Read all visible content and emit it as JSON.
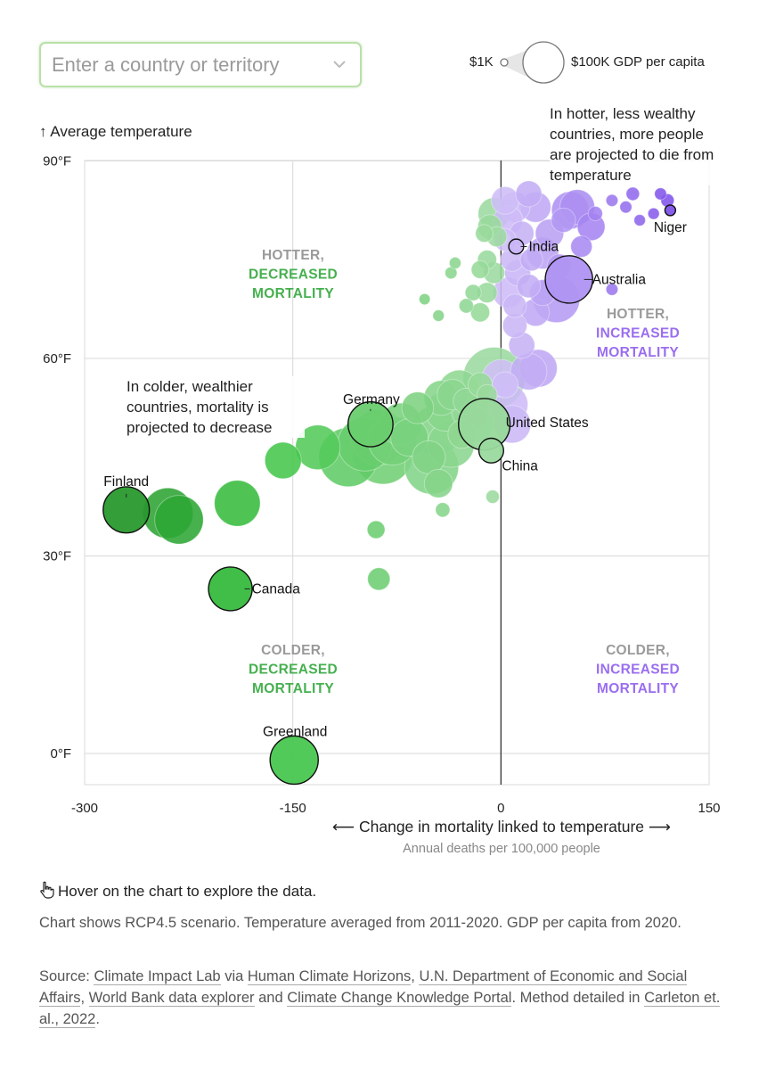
{
  "search": {
    "placeholder": "Enter a country or territory"
  },
  "size_legend": {
    "low": "$1K",
    "high": "$100K GDP per capita"
  },
  "colors": {
    "green_dark": "#2e9a3a",
    "green_light": "#a9e2a4",
    "purple": "#9a6ef0",
    "purple_light": "#d9ccf7",
    "grid": "#d9d9d9"
  },
  "chart_data": {
    "type": "scatter",
    "xlabel": "⟵ Change in mortality linked to temperature ⟶",
    "xlabel_sub": "Annual deaths per 100,000 people",
    "ylabel": "↑ Average temperature",
    "xlim": [
      -300,
      150
    ],
    "ylim": [
      -5,
      90
    ],
    "xticks": [
      "-300",
      "-150",
      "0",
      "150"
    ],
    "yticks": [
      "90°F",
      "60°F",
      "30°F",
      "0°F"
    ],
    "quadrants": {
      "top_left": [
        "HOTTER,",
        "DECREASED",
        "MORTALITY"
      ],
      "top_right": [
        "HOTTER,",
        "INCREASED",
        "MORTALITY"
      ],
      "bottom_left": [
        "COLDER,",
        "DECREASED",
        "MORTALITY"
      ],
      "bottom_right": [
        "COLDER,",
        "INCREASED",
        "MORTALITY"
      ]
    },
    "annotations": {
      "hot": "In hotter, less wealthy countries, more people are projected to die from temperature",
      "cold": "In colder, wealthier countries, mortality is projected to decrease"
    },
    "labeled_points": [
      {
        "name": "Niger",
        "x": 122,
        "y": 82.5,
        "gdp": 0.6
      },
      {
        "name": "India",
        "x": 11,
        "y": 77,
        "gdp": 2.3
      },
      {
        "name": "Australia",
        "x": 49,
        "y": 72,
        "gdp": 52
      },
      {
        "name": "Germany",
        "x": -94,
        "y": 50,
        "gdp": 46
      },
      {
        "name": "United States",
        "x": -12,
        "y": 50,
        "gdp": 63
      },
      {
        "name": "China",
        "x": -7,
        "y": 46,
        "gdp": 10.5
      },
      {
        "name": "Finland",
        "x": -270,
        "y": 37,
        "gdp": 49
      },
      {
        "name": "Canada",
        "x": -195,
        "y": 25,
        "gdp": 43
      },
      {
        "name": "Greenland",
        "x": -149,
        "y": -1,
        "gdp": 54
      }
    ],
    "points": [
      {
        "x": -240,
        "y": 36.5,
        "gdp": 60
      },
      {
        "x": -232,
        "y": 35.5,
        "gdp": 55
      },
      {
        "x": -190,
        "y": 38,
        "gdp": 48
      },
      {
        "x": -157,
        "y": 44.5,
        "gdp": 28
      },
      {
        "x": -132,
        "y": 46.5,
        "gdp": 45
      },
      {
        "x": -110,
        "y": 45,
        "gdp": 85
      },
      {
        "x": -98,
        "y": 47,
        "gdp": 70
      },
      {
        "x": -88,
        "y": 48,
        "gdp": 75
      },
      {
        "x": -85,
        "y": 45.5,
        "gdp": 90
      },
      {
        "x": -78,
        "y": 47.5,
        "gdp": 55
      },
      {
        "x": -72,
        "y": 50,
        "gdp": 40
      },
      {
        "x": -66,
        "y": 48,
        "gdp": 30
      },
      {
        "x": -50,
        "y": 43.5,
        "gdp": 70
      },
      {
        "x": -52,
        "y": 45,
        "gdp": 22
      },
      {
        "x": -47,
        "y": 49,
        "gdp": 60
      },
      {
        "x": -40,
        "y": 52,
        "gdp": 35
      },
      {
        "x": -36,
        "y": 47,
        "gdp": 50
      },
      {
        "x": -30,
        "y": 55,
        "gdp": 40
      },
      {
        "x": -22,
        "y": 52,
        "gdp": 30
      },
      {
        "x": -18,
        "y": 50,
        "gdp": 25
      },
      {
        "x": -45,
        "y": 41,
        "gdp": 15
      },
      {
        "x": -43,
        "y": 54,
        "gdp": 25
      },
      {
        "x": -60,
        "y": 52.5,
        "gdp": 20
      },
      {
        "x": -35,
        "y": 54.5,
        "gdp": 18
      },
      {
        "x": -28,
        "y": 48.5,
        "gdp": 15
      },
      {
        "x": -25,
        "y": 53.5,
        "gdp": 12
      },
      {
        "x": -15,
        "y": 56,
        "gdp": 10
      },
      {
        "x": -10,
        "y": 54.5,
        "gdp": 6
      },
      {
        "x": -5,
        "y": 57,
        "gdp": 95
      },
      {
        "x": 0,
        "y": 57,
        "gdp": 30
      },
      {
        "x": 5,
        "y": 53,
        "gdp": 35
      },
      {
        "x": 8,
        "y": 50,
        "gdp": 30
      },
      {
        "x": 3,
        "y": 56,
        "gdp": 12
      },
      {
        "x": 20,
        "y": 58,
        "gdp": 28
      },
      {
        "x": 27,
        "y": 58.5,
        "gdp": 30
      },
      {
        "x": 15,
        "y": 62,
        "gdp": 12
      },
      {
        "x": 10,
        "y": 65,
        "gdp": 10
      },
      {
        "x": 25,
        "y": 67,
        "gdp": 14
      },
      {
        "x": 40,
        "y": 69,
        "gdp": 50
      },
      {
        "x": 30,
        "y": 70,
        "gdp": 12
      },
      {
        "x": 20,
        "y": 71,
        "gdp": 9
      },
      {
        "x": 42,
        "y": 74,
        "gdp": 10
      },
      {
        "x": 30,
        "y": 76,
        "gdp": 20
      },
      {
        "x": 35,
        "y": 79,
        "gdp": 15
      },
      {
        "x": 50,
        "y": 82.5,
        "gdp": 30
      },
      {
        "x": 55,
        "y": 83,
        "gdp": 25
      },
      {
        "x": 65,
        "y": 80,
        "gdp": 14
      },
      {
        "x": 45,
        "y": 81,
        "gdp": 10
      },
      {
        "x": 58,
        "y": 77,
        "gdp": 7
      },
      {
        "x": 68,
        "y": 82,
        "gdp": 2
      },
      {
        "x": 80,
        "y": 84,
        "gdp": 1
      },
      {
        "x": 95,
        "y": 85,
        "gdp": 1.5
      },
      {
        "x": 115,
        "y": 85,
        "gdp": 1
      },
      {
        "x": 120,
        "y": 84,
        "gdp": 1.5
      },
      {
        "x": 90,
        "y": 83,
        "gdp": 1
      },
      {
        "x": 110,
        "y": 82,
        "gdp": 0.8
      },
      {
        "x": 100,
        "y": 81,
        "gdp": 0.8
      },
      {
        "x": 80,
        "y": 70.5,
        "gdp": 1
      },
      {
        "x": 20,
        "y": 85,
        "gdp": 12
      },
      {
        "x": 25,
        "y": 83,
        "gdp": 18
      },
      {
        "x": 10,
        "y": 83,
        "gdp": 18
      },
      {
        "x": 5,
        "y": 81,
        "gdp": 16
      },
      {
        "x": 3,
        "y": 84,
        "gdp": 14
      },
      {
        "x": 15,
        "y": 79,
        "gdp": 10
      },
      {
        "x": 22,
        "y": 75,
        "gdp": 8
      },
      {
        "x": 12,
        "y": 73,
        "gdp": 12
      },
      {
        "x": 8,
        "y": 75,
        "gdp": 9
      },
      {
        "x": 3,
        "y": 78,
        "gdp": 8
      },
      {
        "x": -5,
        "y": 82,
        "gdp": 20
      },
      {
        "x": -8,
        "y": 80,
        "gdp": 10
      },
      {
        "x": -3,
        "y": 78.5,
        "gdp": 6
      },
      {
        "x": -12,
        "y": 79,
        "gdp": 4
      },
      {
        "x": -10,
        "y": 75,
        "gdp": 5
      },
      {
        "x": -15,
        "y": 73.5,
        "gdp": 4
      },
      {
        "x": -5,
        "y": 73,
        "gdp": 7
      },
      {
        "x": -10,
        "y": 70,
        "gdp": 6
      },
      {
        "x": -20,
        "y": 70,
        "gdp": 3
      },
      {
        "x": -25,
        "y": 68,
        "gdp": 2
      },
      {
        "x": -15,
        "y": 67,
        "gdp": 5
      },
      {
        "x": 5,
        "y": 70,
        "gdp": 18
      },
      {
        "x": 10,
        "y": 68,
        "gdp": 9
      },
      {
        "x": -36,
        "y": 73,
        "gdp": 1
      },
      {
        "x": -33,
        "y": 74.5,
        "gdp": 0.9
      },
      {
        "x": -55,
        "y": 69,
        "gdp": 0.7
      },
      {
        "x": -45,
        "y": 66.5,
        "gdp": 0.8
      },
      {
        "x": -90,
        "y": 34,
        "gdp": 4
      },
      {
        "x": -88,
        "y": 26.5,
        "gdp": 8
      },
      {
        "x": -42,
        "y": 37,
        "gdp": 2
      },
      {
        "x": -6,
        "y": 39,
        "gdp": 1.5
      }
    ]
  },
  "hover_hint": "Hover on the chart to explore the data.",
  "notes": "Chart shows RCP4.5 scenario. Temperature averaged from 2011-2020. GDP per capita from 2020.",
  "source": {
    "prefix": "Source: ",
    "l1": "Climate Impact Lab",
    "t1": " via ",
    "l2": "Human Climate Horizons",
    "t2": ", ",
    "l3": "U.N. Department of Economic and Social Affairs",
    "t3": ", ",
    "l4": "World Bank data explorer",
    "t4": " and ",
    "l5": "Climate Change Knowledge Portal",
    "t5": ". Method detailed in ",
    "l6": "Carleton et. al., 2022",
    "t6": "."
  }
}
